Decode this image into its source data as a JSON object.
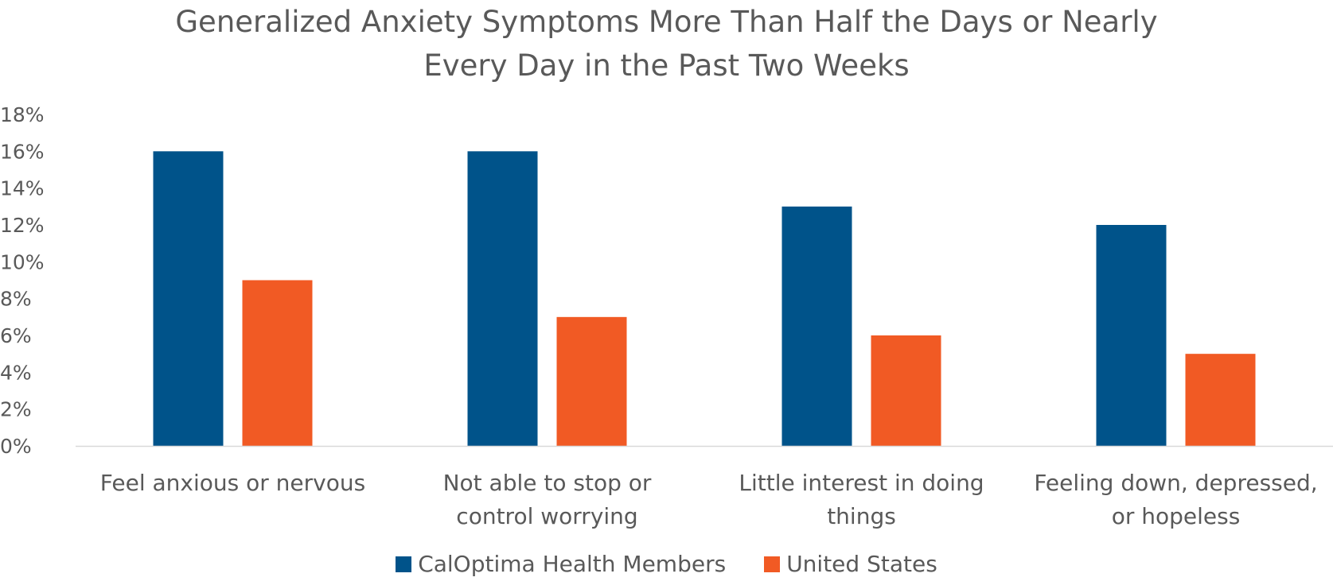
{
  "chart_data": {
    "type": "bar",
    "title_lines": [
      "Generalized Anxiety Symptoms More Than Half the Days or Nearly",
      "Every Day in the Past Two Weeks"
    ],
    "categories": [
      [
        "Feel anxious or nervous"
      ],
      [
        "Not able to stop or",
        "control worrying"
      ],
      [
        "Little interest in doing",
        "things"
      ],
      [
        "Feeling down, depressed,",
        "or hopeless"
      ]
    ],
    "series": [
      {
        "name": "CalOptima Health Members",
        "values": [
          16,
          16,
          13,
          12
        ],
        "color": "#00538a"
      },
      {
        "name": "United States",
        "values": [
          9,
          7,
          6,
          5
        ],
        "color": "#f15a24"
      }
    ],
    "y_ticks": [
      "0%",
      "2%",
      "4%",
      "6%",
      "8%",
      "10%",
      "12%",
      "14%",
      "16%",
      "18%"
    ],
    "ylim": [
      0,
      18
    ],
    "y_unit": "%",
    "grid": false,
    "legend_position": "bottom"
  }
}
